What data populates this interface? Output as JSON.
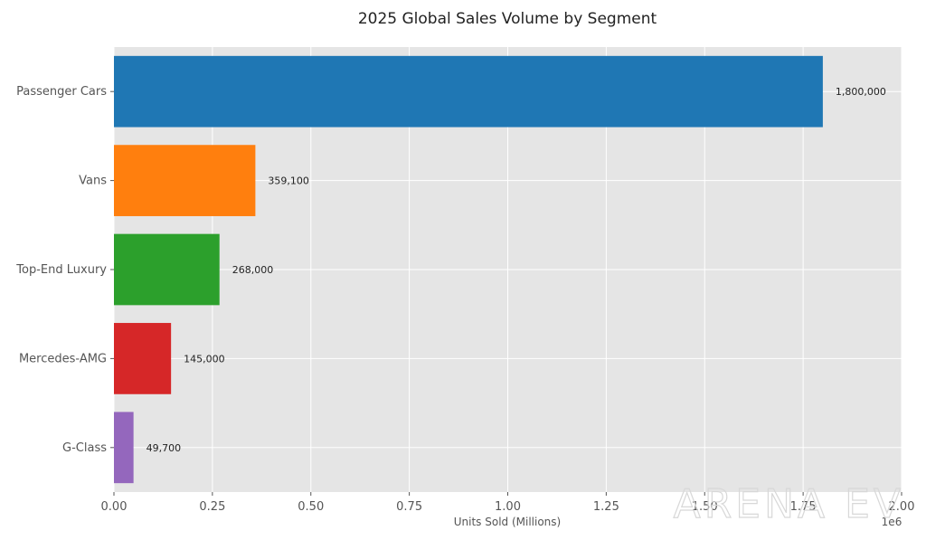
{
  "chart_data": {
    "type": "bar",
    "orientation": "horizontal",
    "title": "2025 Global Sales Volume by Segment",
    "xlabel": "Units Sold (Millions)",
    "ylabel": "",
    "x_offset_label": "1e6",
    "categories": [
      "Passenger Cars",
      "Vans",
      "Top-End Luxury",
      "Mercedes-AMG",
      "G-Class"
    ],
    "values": [
      1800000,
      359100,
      268000,
      145000,
      49700
    ],
    "value_labels": [
      "1,800,000",
      "359,100",
      "268,000",
      "145,000",
      "49,700"
    ],
    "colors": [
      "#1f77b4",
      "#ff7f0e",
      "#2ca02c",
      "#d62728",
      "#9467bd"
    ],
    "xlim": [
      0,
      2000000
    ],
    "x_ticks": [
      0,
      250000,
      500000,
      750000,
      1000000,
      1250000,
      1500000,
      1750000,
      2000000
    ],
    "x_tick_labels": [
      "0.00",
      "0.25",
      "0.50",
      "0.75",
      "1.00",
      "1.25",
      "1.50",
      "1.75",
      "2.00"
    ],
    "grid": true,
    "background": "#e5e5e5",
    "grid_color": "#ffffff"
  },
  "watermark": "ARENA EV"
}
